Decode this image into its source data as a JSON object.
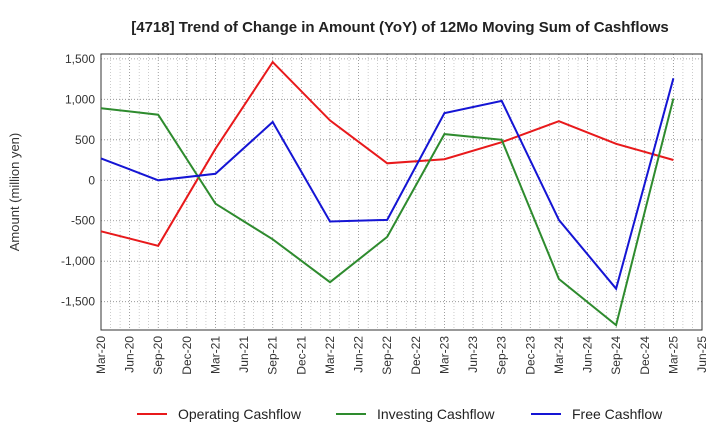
{
  "chart_data": {
    "type": "line",
    "title": "[4718]  Trend of Change in Amount (YoY) of 12Mo Moving Sum of Cashflows",
    "xlabel": "",
    "ylabel": "Amount (million yen)",
    "ylim": [
      -1850,
      1560
    ],
    "yticks": [
      1500,
      1000,
      500,
      0,
      -500,
      -1000,
      -1500
    ],
    "ytick_labels": [
      "1,500",
      "1,000",
      "500",
      "0",
      "-500",
      "-1,000",
      "-1,500"
    ],
    "categories": [
      "Mar-20",
      "Jun-20",
      "Sep-20",
      "Dec-20",
      "Mar-21",
      "Jun-21",
      "Sep-21",
      "Dec-21",
      "Mar-22",
      "Jun-22",
      "Sep-22",
      "Dec-22",
      "Mar-23",
      "Jun-23",
      "Sep-23",
      "Dec-23",
      "Mar-24",
      "Jun-24",
      "Sep-24",
      "Dec-24",
      "Mar-25",
      "Jun-25"
    ],
    "grid": true,
    "legend_position": "bottom",
    "series": [
      {
        "name": "Operating Cashflow",
        "color": "#e8191b",
        "values": [
          -630,
          null,
          -810,
          null,
          390,
          null,
          1460,
          null,
          740,
          null,
          210,
          null,
          260,
          null,
          470,
          null,
          730,
          null,
          450,
          null,
          250,
          null
        ]
      },
      {
        "name": "Investing Cashflow",
        "color": "#2e8b2e",
        "values": [
          890,
          null,
          810,
          null,
          -290,
          null,
          -730,
          null,
          -1260,
          null,
          -700,
          null,
          570,
          null,
          500,
          null,
          -1220,
          null,
          -1790,
          null,
          1010,
          null
        ]
      },
      {
        "name": "Free Cashflow",
        "color": "#1515d4",
        "values": [
          270,
          null,
          0,
          null,
          80,
          null,
          720,
          null,
          -510,
          null,
          -490,
          null,
          830,
          null,
          980,
          null,
          -490,
          null,
          -1340,
          null,
          1260,
          null
        ]
      }
    ]
  }
}
